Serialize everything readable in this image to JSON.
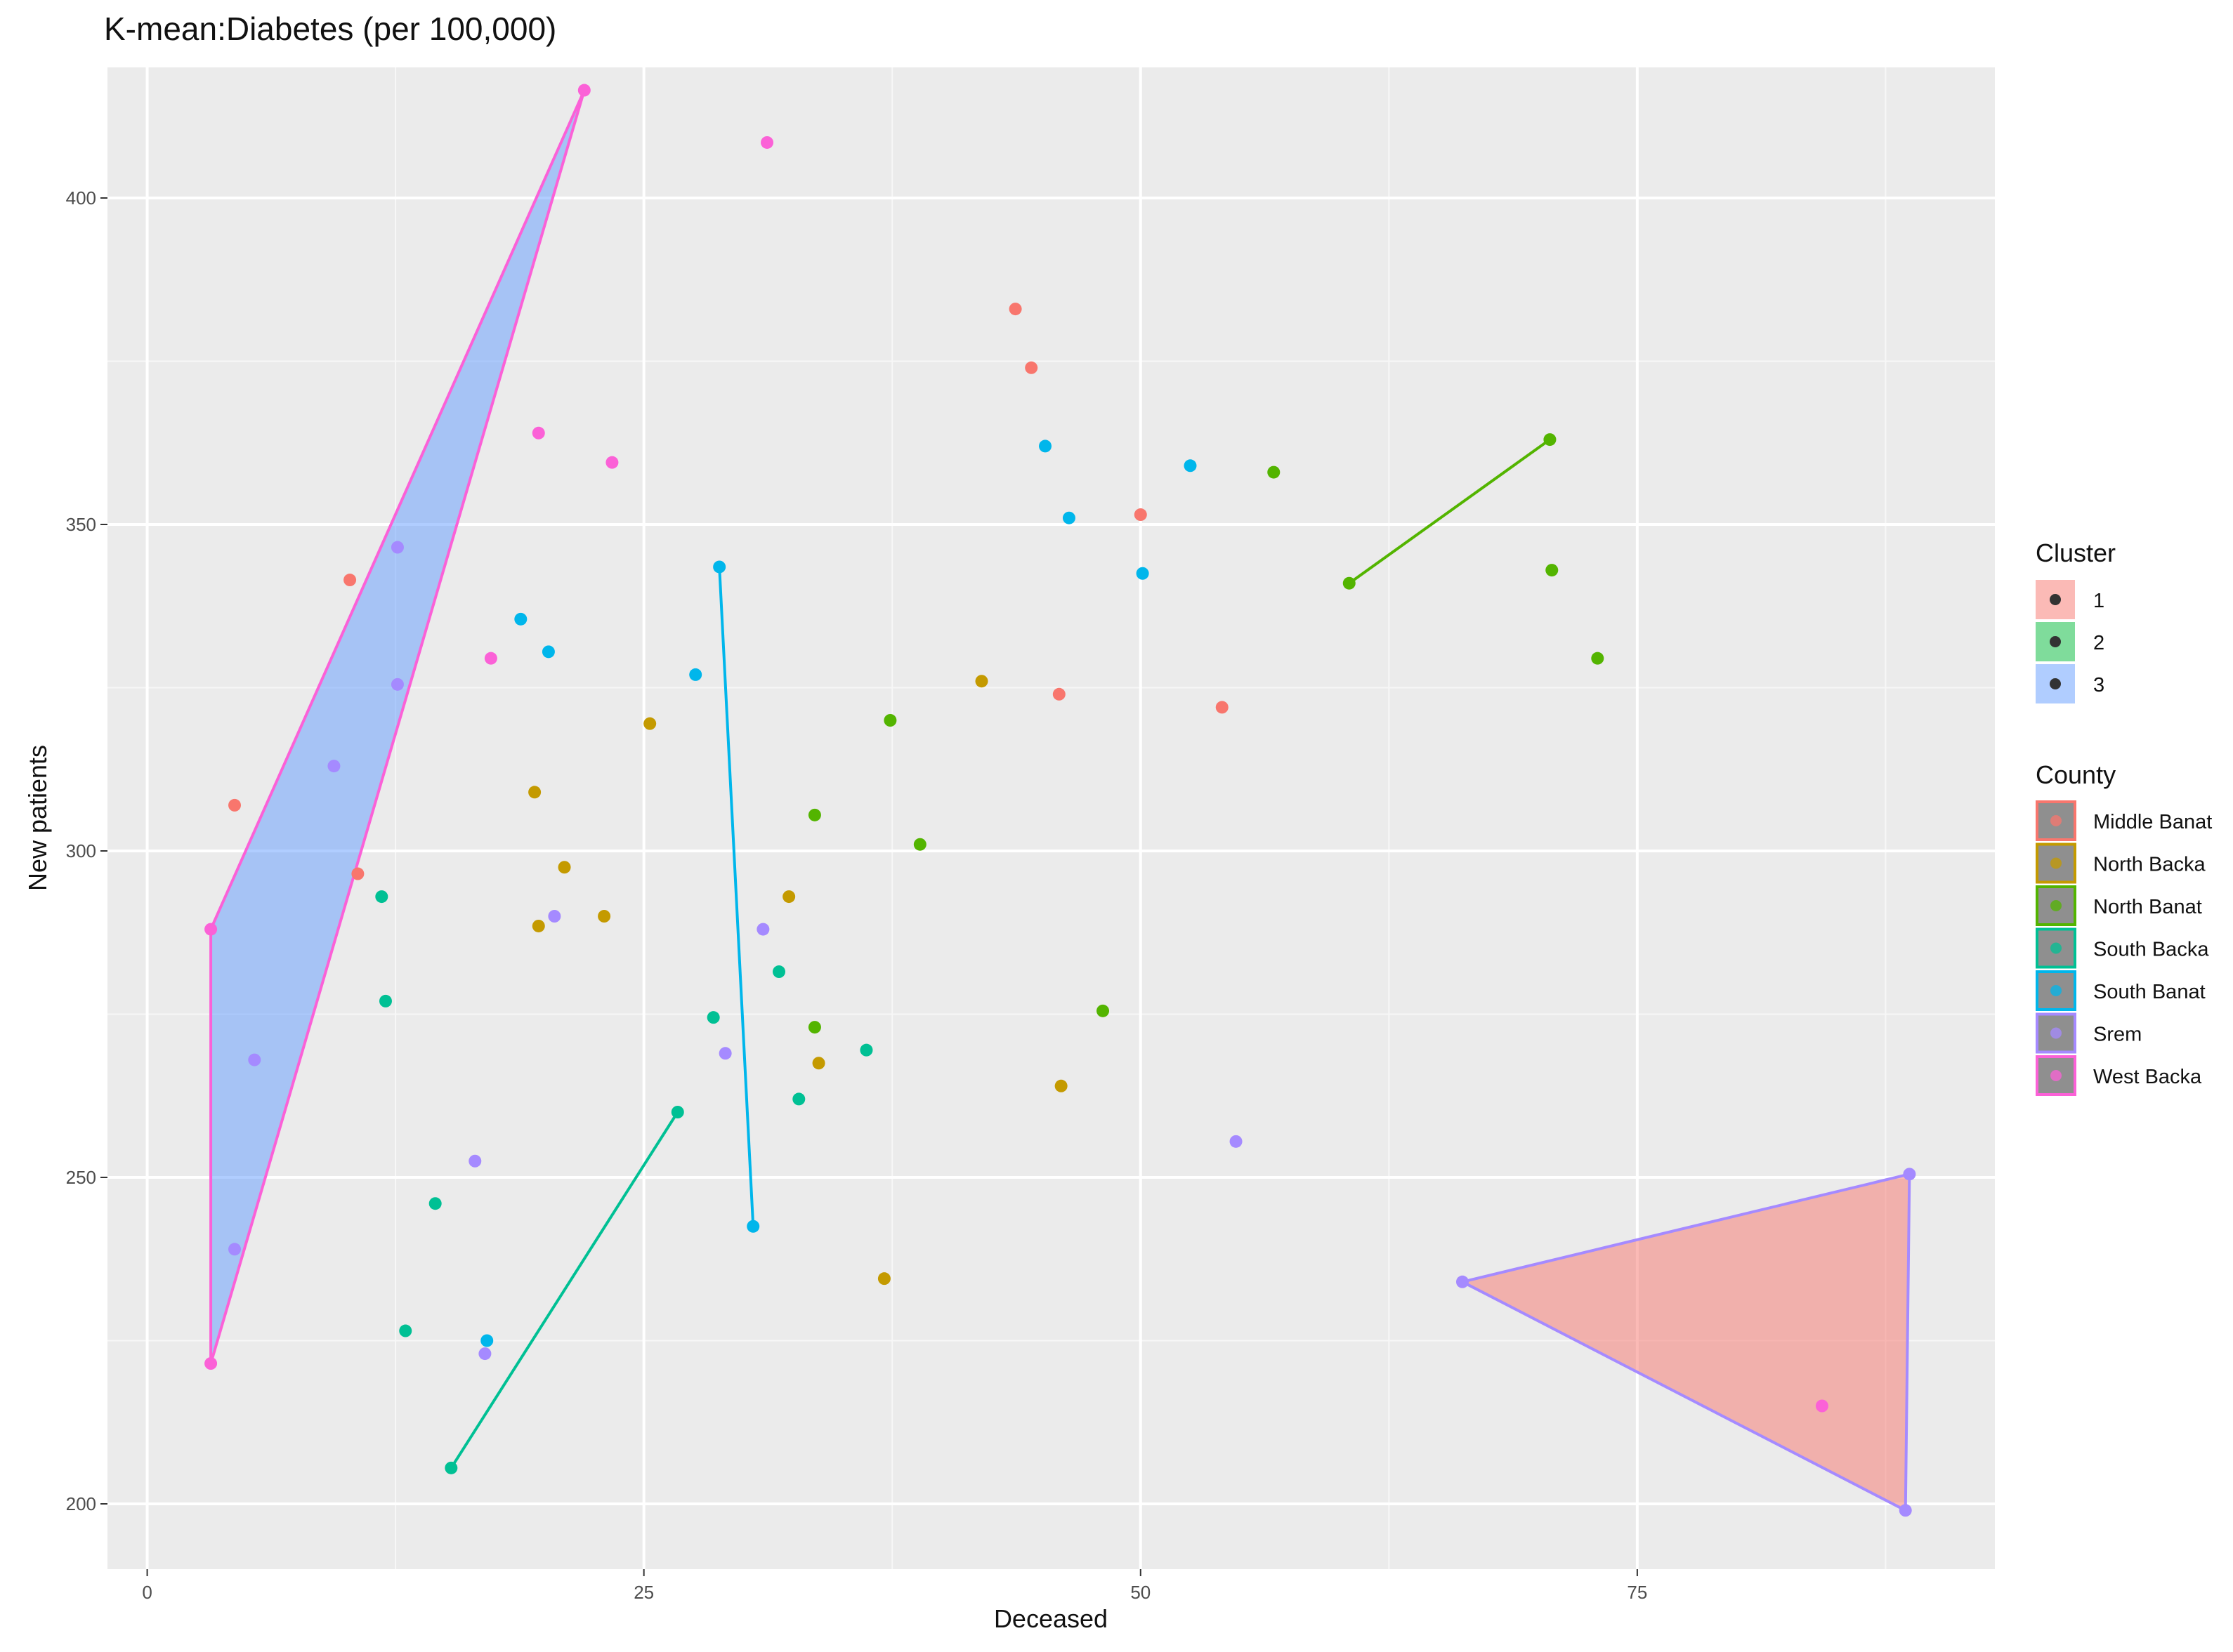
{
  "chart_data": {
    "type": "scatter",
    "title": "K-mean:Diabetes (per 100,000)",
    "xlabel": "Deceased",
    "ylabel": "New patients",
    "xlim": [
      -2,
      93
    ],
    "ylim": [
      190,
      420
    ],
    "x_ticks": [
      0,
      25,
      50,
      75
    ],
    "y_ticks": [
      200,
      250,
      300,
      350,
      400
    ],
    "grid": true,
    "legend_placement": "right",
    "colors": {
      "Middle Banat": "#F8766D",
      "North Backa": "#C49A00",
      "North Banat": "#53B400",
      "South Backa": "#00C094",
      "South Banat": "#00B6EB",
      "Srem": "#A58AFF",
      "West Backa": "#FB61D7"
    },
    "cluster_legend": {
      "title": "Cluster",
      "entries": [
        {
          "label": "1",
          "fill": "#F8766D"
        },
        {
          "label": "2",
          "fill": "#00BA38"
        },
        {
          "label": "3",
          "fill": "#619CFF"
        }
      ]
    },
    "county_legend": {
      "title": "County",
      "entries": [
        "Middle Banat",
        "North Backa",
        "North Banat",
        "South Backa",
        "South Banat",
        "Srem",
        "West Backa"
      ]
    },
    "hulls": [
      {
        "cluster": "3",
        "county": "West Backa",
        "fill": "#619CFF",
        "points": [
          [
            3.2,
            288
          ],
          [
            22,
            416.5
          ],
          [
            3.2,
            221.5
          ]
        ]
      },
      {
        "cluster": "1",
        "county": "Srem",
        "fill": "#F8766D",
        "points": [
          [
            66.2,
            234
          ],
          [
            88.7,
            250.5
          ],
          [
            88.5,
            199
          ]
        ]
      },
      {
        "cluster": "",
        "county": "North Banat",
        "fill": "none",
        "points": [
          [
            60.5,
            341
          ],
          [
            70.6,
            363
          ]
        ]
      },
      {
        "cluster": "",
        "county": "South Backa",
        "fill": "none",
        "points": [
          [
            15.3,
            205.5
          ],
          [
            26.7,
            260
          ]
        ]
      },
      {
        "cluster": "",
        "county": "South Banat",
        "fill": "none",
        "points": [
          [
            28.8,
            343.5
          ],
          [
            30.5,
            242.5
          ]
        ]
      }
    ],
    "series": [
      {
        "name": "Middle Banat",
        "points": [
          [
            43.7,
            383
          ],
          [
            44.5,
            374
          ],
          [
            50,
            351.5
          ],
          [
            10.2,
            341.5
          ],
          [
            45.9,
            324
          ],
          [
            54.1,
            322
          ],
          [
            4.4,
            307
          ],
          [
            10.6,
            296.5
          ]
        ]
      },
      {
        "name": "North Backa",
        "points": [
          [
            25.3,
            319.5
          ],
          [
            42,
            326
          ],
          [
            19.5,
            309
          ],
          [
            21,
            297.5
          ],
          [
            19.7,
            288.5
          ],
          [
            23,
            290
          ],
          [
            32.3,
            293
          ],
          [
            33.8,
            267.5
          ],
          [
            46,
            264
          ],
          [
            37.1,
            234.5
          ]
        ]
      },
      {
        "name": "North Banat",
        "points": [
          [
            56.7,
            358
          ],
          [
            70.6,
            363
          ],
          [
            70.7,
            343
          ],
          [
            73,
            329.5
          ],
          [
            60.5,
            341
          ],
          [
            37.4,
            320
          ],
          [
            33.6,
            305.5
          ],
          [
            38.9,
            301
          ],
          [
            33.6,
            273
          ],
          [
            48.1,
            275.5
          ]
        ]
      },
      {
        "name": "South Backa",
        "points": [
          [
            11.8,
            293
          ],
          [
            12,
            277
          ],
          [
            28.5,
            274.5
          ],
          [
            31.8,
            281.5
          ],
          [
            36.2,
            269.5
          ],
          [
            32.8,
            262
          ],
          [
            26.7,
            260
          ],
          [
            14.5,
            246
          ],
          [
            13,
            226.5
          ],
          [
            15.3,
            205.5
          ]
        ]
      },
      {
        "name": "South Banat",
        "points": [
          [
            45.2,
            362
          ],
          [
            52.5,
            359
          ],
          [
            46.4,
            351
          ],
          [
            50.1,
            342.5
          ],
          [
            18.8,
            335.5
          ],
          [
            20.2,
            330.5
          ],
          [
            27.6,
            327
          ],
          [
            28.8,
            343.5
          ],
          [
            30.5,
            242.5
          ],
          [
            17.1,
            225
          ]
        ]
      },
      {
        "name": "Srem",
        "points": [
          [
            12.6,
            346.5
          ],
          [
            12.6,
            325.5
          ],
          [
            9.4,
            313
          ],
          [
            20.5,
            290
          ],
          [
            31,
            288
          ],
          [
            29.1,
            269
          ],
          [
            5.4,
            268
          ],
          [
            16.5,
            252.5
          ],
          [
            54.8,
            255.5
          ],
          [
            4.4,
            239
          ],
          [
            17,
            223
          ],
          [
            66.2,
            234
          ],
          [
            88.7,
            250.5
          ],
          [
            88.5,
            199
          ]
        ]
      },
      {
        "name": "West Backa",
        "points": [
          [
            22,
            416.5
          ],
          [
            31.2,
            408.5
          ],
          [
            19.7,
            364
          ],
          [
            23.4,
            359.5
          ],
          [
            17.3,
            329.5
          ],
          [
            3.2,
            288
          ],
          [
            3.2,
            221.5
          ],
          [
            84.3,
            215
          ]
        ]
      }
    ]
  }
}
